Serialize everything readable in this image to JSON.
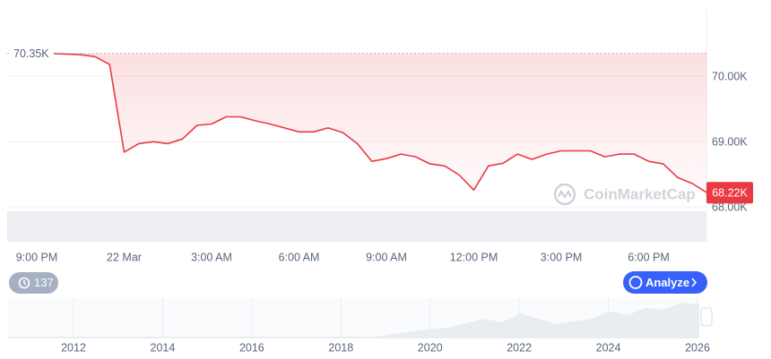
{
  "chart_data": {
    "type": "line",
    "categories": [
      "9:00 PM",
      null,
      null,
      null,
      null,
      null,
      "22 Mar",
      null,
      null,
      null,
      null,
      null,
      "3:00 AM",
      null,
      null,
      null,
      null,
      null,
      "6:00 AM",
      null,
      null,
      null,
      null,
      null,
      "9:00 AM",
      null,
      null,
      null,
      null,
      null,
      "12:00 PM",
      null,
      null,
      null,
      null,
      null,
      "3:00 PM",
      null,
      null,
      null,
      null,
      null,
      "6:00 PM",
      null,
      null,
      null,
      null
    ],
    "values": [
      70350,
      70350,
      70340,
      70330,
      70300,
      70180,
      68840,
      68970,
      69000,
      68970,
      69040,
      69250,
      69270,
      69380,
      69380,
      69320,
      69270,
      69210,
      69150,
      69150,
      69210,
      69140,
      68970,
      68700,
      68740,
      68810,
      68770,
      68660,
      68630,
      68490,
      68260,
      68630,
      68670,
      68810,
      68730,
      68810,
      68860,
      68860,
      68860,
      68770,
      68810,
      68810,
      68700,
      68660,
      68450,
      68360,
      68220
    ],
    "color": "#ea3943",
    "ylim": [
      67470,
      71030
    ],
    "yticks": [
      {
        "value": 68000,
        "label": "68.00K"
      },
      {
        "value": 69000,
        "label": "69.00K"
      },
      {
        "value": 70000,
        "label": "70.00K"
      }
    ],
    "grid": true,
    "open_label": {
      "value": 70350,
      "label": "70.35K"
    },
    "last_label": {
      "value": 68220,
      "label": "68.22K"
    },
    "watermark": "CoinMarketCap"
  },
  "ui": {
    "history_badge": 137,
    "analyze_button": "Analyze",
    "navigator_years": [
      2012,
      2014,
      2016,
      2018,
      2020,
      2022,
      2024,
      2026
    ]
  }
}
